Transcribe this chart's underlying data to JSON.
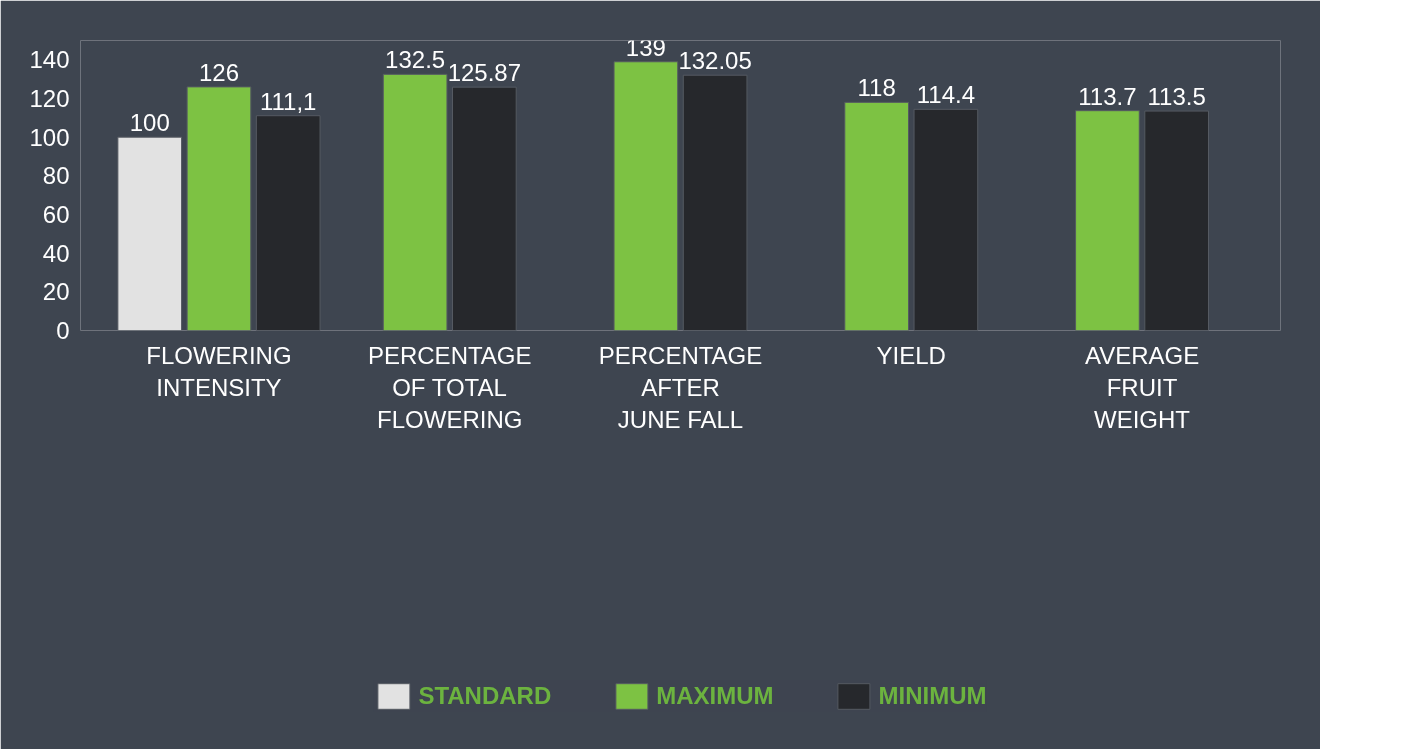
{
  "chart_data": {
    "type": "bar",
    "categories": [
      "FLOWERING\nINTENSITY",
      "PERCENTAGE\nOF TOTAL\nFLOWERING",
      "PERCENTAGE\nAFTER\nJUNE FALL",
      "YIELD",
      "AVERAGE\nFRUIT\nWEIGHT"
    ],
    "series": [
      {
        "name": "STANDARD",
        "color": "#e2e2e2",
        "values": [
          100,
          null,
          null,
          null,
          null
        ],
        "value_labels": [
          "100",
          null,
          null,
          null,
          null
        ]
      },
      {
        "name": "MAXIMUM",
        "color": "#7dc243",
        "values": [
          126,
          132.5,
          139,
          118,
          113.7
        ],
        "value_labels": [
          "126",
          "132.5",
          "139",
          "118",
          "113.7"
        ]
      },
      {
        "name": "MINIMUM",
        "color": "#26282c",
        "values": [
          111.1,
          125.87,
          132.05,
          114.4,
          113.5
        ],
        "value_labels": [
          "111,1",
          "125.87",
          "132.05",
          "114.4",
          "113.5"
        ]
      }
    ],
    "ylim": [
      0,
      150
    ],
    "yticks": [
      0,
      20,
      40,
      60,
      80,
      100,
      120,
      140
    ],
    "grid": false,
    "legend": "bottom"
  }
}
